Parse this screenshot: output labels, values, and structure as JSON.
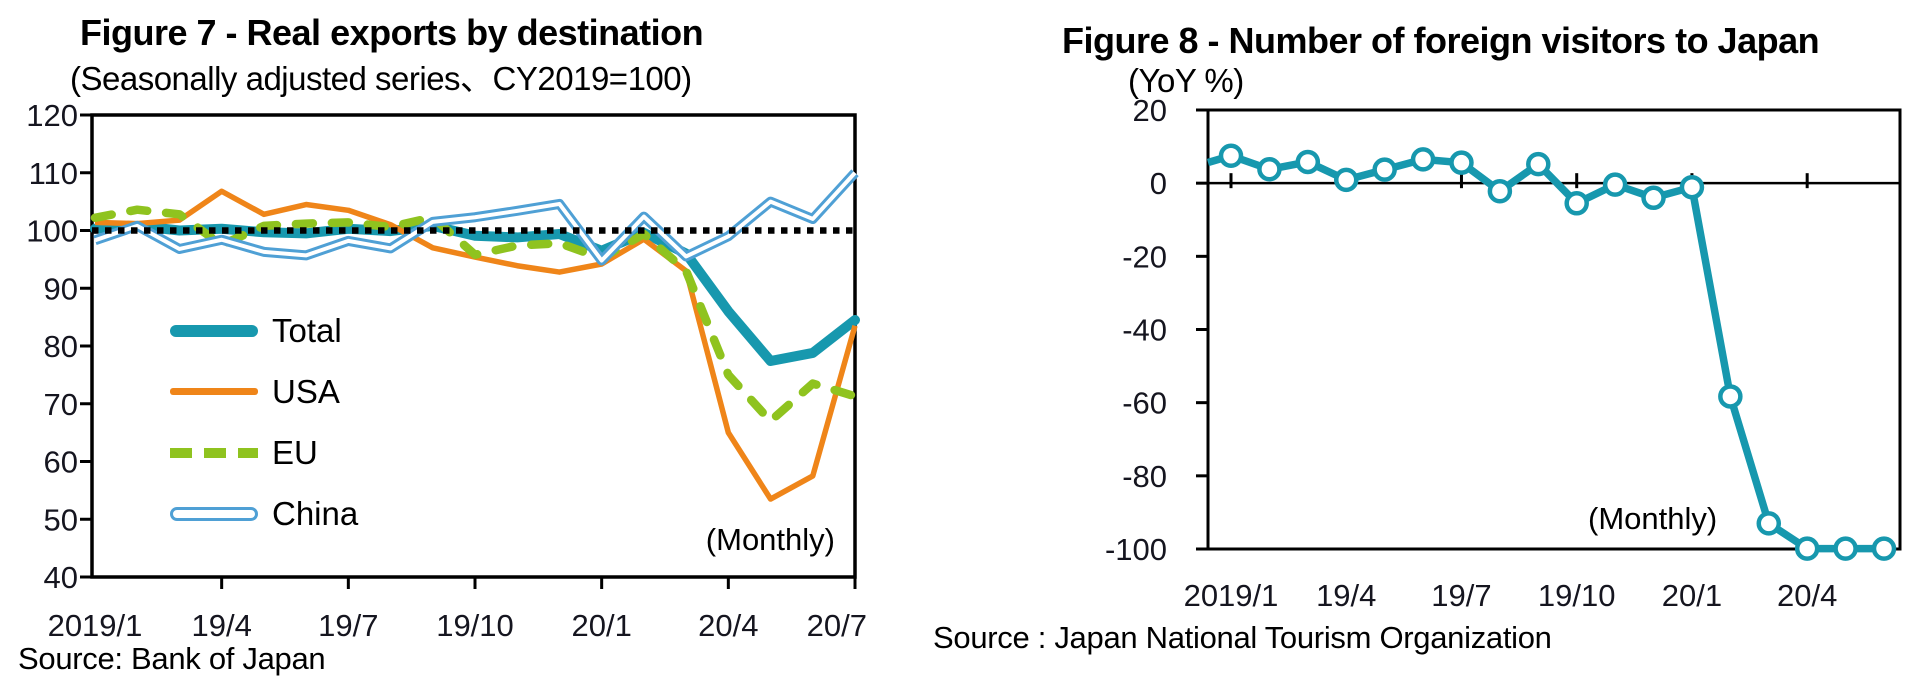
{
  "chart_data": [
    {
      "type": "line",
      "title": "Figure 7 - Real exports by destination",
      "subtitle": "(Seasonally adjusted series、CY2019=100)",
      "source": "Source: Bank of Japan",
      "annotation": "(Monthly)",
      "frequency": "monthly",
      "x_categories": [
        "2019/1",
        "2019/2",
        "2019/3",
        "2019/4",
        "2019/5",
        "2019/6",
        "2019/7",
        "2019/8",
        "2019/9",
        "2019/10",
        "2019/11",
        "2019/12",
        "2020/1",
        "2020/2",
        "2020/3",
        "2020/4",
        "2020/5",
        "2020/6",
        "2020/7"
      ],
      "x_tick_labels": [
        "2019/1",
        "19/4",
        "19/7",
        "19/10",
        "20/1",
        "20/4",
        "20/7"
      ],
      "x_tick_months": [
        0,
        3,
        6,
        9,
        12,
        15,
        18
      ],
      "ylim": [
        40,
        120
      ],
      "y_ticks": [
        40,
        50,
        60,
        70,
        80,
        90,
        100,
        110,
        120
      ],
      "ref_line": 100,
      "grid": false,
      "legend_position": "inside-left",
      "series": [
        {
          "name": "Total",
          "color": "#1798AE",
          "style": "thick",
          "values": [
            100.3,
            100.8,
            100.0,
            100.3,
            99.7,
            99.5,
            100.3,
            99.9,
            100.8,
            99.1,
            98.8,
            99.4,
            96.5,
            99.6,
            96.0,
            86.0,
            77.4,
            78.8,
            84.5
          ]
        },
        {
          "name": "USA",
          "color": "#EF8519",
          "style": "solid",
          "values": [
            101.4,
            101.2,
            101.8,
            106.8,
            102.8,
            104.5,
            103.5,
            101.0,
            97.0,
            95.4,
            93.9,
            92.8,
            94.2,
            98.5,
            93.0,
            65.0,
            53.5,
            57.5,
            83.5
          ]
        },
        {
          "name": "EU",
          "color": "#8FC31F",
          "style": "dashed",
          "values": [
            102.2,
            103.6,
            102.8,
            97.5,
            100.8,
            101.2,
            101.4,
            100.6,
            102.3,
            95.8,
            97.4,
            97.8,
            95.2,
            99.4,
            93.0,
            75.0,
            67.0,
            73.5,
            71.3
          ]
        },
        {
          "name": "China",
          "color": "#4FA0D5",
          "style": "double",
          "values": [
            98.3,
            100.8,
            96.8,
            98.4,
            96.3,
            95.7,
            98.2,
            96.9,
            101.5,
            102.3,
            103.4,
            104.6,
            94.8,
            102.4,
            95.5,
            99.0,
            105.0,
            102.0,
            110.0
          ]
        }
      ]
    },
    {
      "type": "line",
      "title": "Figure 8 - Number of foreign visitors to Japan",
      "subtitle": "(YoY %)",
      "source": "Source : Japan National Tourism Organization",
      "annotation": "(Monthly)",
      "frequency": "monthly",
      "x_categories": [
        "2019/1",
        "2019/2",
        "2019/3",
        "2019/4",
        "2019/5",
        "2019/6",
        "2019/7",
        "2019/8",
        "2019/9",
        "2019/10",
        "2019/11",
        "2019/12",
        "2020/1",
        "2020/2",
        "2020/3",
        "2020/4",
        "2020/5",
        "2020/6"
      ],
      "x_tick_labels": [
        "2019/1",
        "19/4",
        "19/7",
        "19/10",
        "20/1",
        "20/4"
      ],
      "x_tick_months": [
        0,
        3,
        6,
        9,
        12,
        15
      ],
      "ylim": [
        -100,
        20
      ],
      "y_ticks": [
        -100,
        -80,
        -60,
        -40,
        -20,
        0,
        20
      ],
      "zero_axis": true,
      "lead_in_value": 4.4,
      "grid": false,
      "legend_position": "none",
      "series": [
        {
          "name": "Foreign visitors to Japan (YoY %)",
          "color": "#1798AE",
          "style": "markers",
          "values": [
            7.5,
            3.8,
            5.8,
            0.9,
            3.7,
            6.5,
            5.6,
            -2.2,
            5.2,
            -5.5,
            -0.4,
            -4.0,
            -1.1,
            -58.3,
            -93.0,
            -99.9,
            -99.9,
            -99.9
          ]
        }
      ]
    }
  ]
}
